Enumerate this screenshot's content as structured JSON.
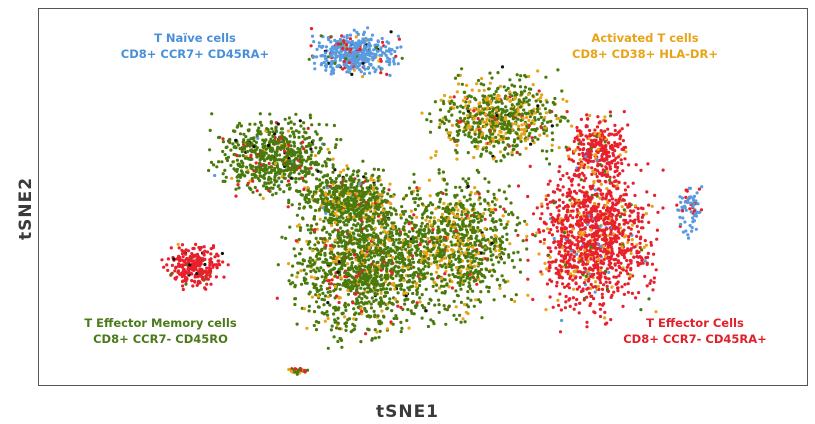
{
  "chart_data": {
    "type": "scatter",
    "title": "",
    "xlabel": "tSNE1",
    "ylabel": "tSNE2",
    "grid": false,
    "legend": "none",
    "annotations": [
      {
        "line1": "T Naïve cells",
        "line2": "CD8+ CCR7+ CD45RA+",
        "color": "#4a90d9"
      },
      {
        "line1": "Activated T cells",
        "line2": "CD8+ CD38+ HLA-DR+",
        "color": "#e8a317"
      },
      {
        "line1": "T Effector Memory cells",
        "line2": "CD8+ CCR7- CD45RO",
        "color": "#4a7a1a"
      },
      {
        "line1": "T Effector Cells",
        "line2": "CD8+ CCR7- CD45RA+",
        "color": "#e0202a"
      }
    ],
    "series": [
      {
        "color": "#4a7a0c"
      },
      {
        "color": "#e8a317"
      },
      {
        "color": "#e8202c"
      },
      {
        "color": "#5a9be0"
      },
      {
        "color": "#111111"
      }
    ]
  }
}
